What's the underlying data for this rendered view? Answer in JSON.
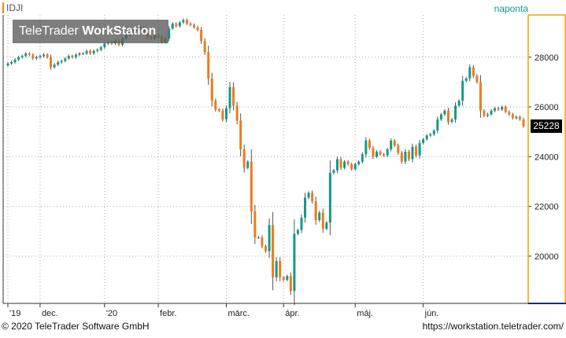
{
  "header": {
    "symbol": "IDJI",
    "period": "naponta",
    "brand_light": "TeleTrader ",
    "brand_bold": "WorkStation"
  },
  "footer": {
    "copyright": "© 2020 TeleTrader Software GmbH",
    "url": "https://workstation.teletrader.com/"
  },
  "colors": {
    "up": "#139a87",
    "down": "#f07a1a",
    "grid": "#aaaaaa",
    "axis_frame": "#f5a100",
    "bottom_axis": "#1a2a8a"
  },
  "chart_data": {
    "type": "candlestick",
    "instrument": "IDJI",
    "y_ticks": [
      "28000",
      "26000",
      "24000",
      "22000",
      "20000"
    ],
    "y_range": [
      18100,
      29700
    ],
    "x_labels": [
      {
        "label": "'19",
        "index": 0
      },
      {
        "label": "dec.",
        "index": 9
      },
      {
        "label": "'20",
        "index": 27
      },
      {
        "label": "febr.",
        "index": 42
      },
      {
        "label": "márc.",
        "index": 61
      },
      {
        "label": "ápr.",
        "index": 77
      },
      {
        "label": "máj.",
        "index": 97
      },
      {
        "label": "jún.",
        "index": 116
      }
    ],
    "last_value": "25228",
    "close": [
      27750,
      27800,
      27900,
      28000,
      28050,
      28150,
      28100,
      27950,
      28000,
      28050,
      28100,
      28000,
      27600,
      27700,
      27800,
      27850,
      27950,
      28050,
      28000,
      28100,
      28150,
      28150,
      28250,
      28150,
      28250,
      28300,
      28400,
      28550,
      28600,
      28550,
      28650,
      28500,
      28750,
      28900,
      29050,
      29150,
      29100,
      29200,
      29000,
      28800,
      28750,
      28900,
      28800,
      28600,
      28750,
      29150,
      29350,
      29250,
      29400,
      29500,
      29350,
      29300,
      29200,
      29100,
      28650,
      28200,
      27150,
      26250,
      25900,
      25850,
      25500,
      25950,
      26800,
      26050,
      25450,
      24300,
      23550,
      23800,
      21800,
      20750,
      20750,
      20400,
      20200,
      21250,
      19150,
      19800,
      19150,
      19050,
      19200,
      18600,
      20900,
      21050,
      21550,
      22350,
      22550,
      22200,
      21450,
      21750,
      21100,
      21350,
      23350,
      23450,
      23900,
      23550,
      23800,
      23700,
      23500,
      23700,
      23800,
      24100,
      24650,
      24350,
      24000,
      24200,
      24100,
      24050,
      24300,
      24650,
      24450,
      24150,
      23800,
      24200,
      23900,
      24400,
      24050,
      24550,
      24700,
      24850,
      24900,
      25050,
      25500,
      25700,
      25850,
      25400,
      25500,
      26050,
      26250,
      27050,
      27150,
      27600,
      27250,
      27000,
      25850,
      25650,
      25700,
      25850,
      25950,
      25900,
      26000,
      25800,
      25700,
      25550,
      25600,
      25500,
      25228
    ]
  }
}
